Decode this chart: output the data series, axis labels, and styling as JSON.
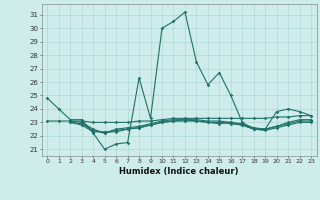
{
  "xlabel": "Humidex (Indice chaleur)",
  "bg_color": "#ceecea",
  "grid_color": "#aed8d4",
  "line_color": "#1e7068",
  "xlim": [
    -0.5,
    23.5
  ],
  "ylim": [
    20.5,
    31.8
  ],
  "yticks": [
    21,
    22,
    23,
    24,
    25,
    26,
    27,
    28,
    29,
    30,
    31
  ],
  "xticks": [
    0,
    1,
    2,
    3,
    4,
    5,
    6,
    7,
    8,
    9,
    10,
    11,
    12,
    13,
    14,
    15,
    16,
    17,
    18,
    19,
    20,
    21,
    22,
    23
  ],
  "line1_x": [
    0,
    1,
    2,
    3,
    4,
    5,
    6,
    7,
    8,
    9,
    10,
    11,
    12,
    13,
    14,
    15,
    16,
    17,
    18,
    19,
    20,
    21,
    22,
    23
  ],
  "line1_y": [
    24.8,
    24.0,
    23.2,
    23.2,
    22.2,
    21.0,
    21.4,
    21.5,
    26.3,
    23.3,
    30.0,
    30.5,
    31.2,
    27.5,
    25.8,
    26.7,
    25.0,
    23.0,
    22.5,
    22.5,
    23.8,
    24.0,
    23.8,
    23.5
  ],
  "line2_x": [
    0,
    1,
    2,
    3,
    4,
    5,
    6,
    7,
    8,
    9,
    10,
    11,
    12,
    13,
    14,
    15,
    16,
    17,
    18,
    19,
    20,
    21,
    22,
    23
  ],
  "line2_y": [
    23.1,
    23.1,
    23.1,
    23.1,
    23.0,
    23.0,
    23.0,
    23.0,
    23.1,
    23.1,
    23.2,
    23.3,
    23.3,
    23.3,
    23.3,
    23.3,
    23.3,
    23.3,
    23.3,
    23.3,
    23.4,
    23.4,
    23.5,
    23.5
  ],
  "line3_x": [
    2,
    3,
    4,
    5,
    6,
    7,
    8,
    9,
    10,
    11,
    12,
    13,
    14,
    15,
    16,
    17,
    18,
    19,
    20,
    21,
    22,
    23
  ],
  "line3_y": [
    23.0,
    22.8,
    22.3,
    22.3,
    22.3,
    22.5,
    22.6,
    22.8,
    23.0,
    23.1,
    23.2,
    23.1,
    23.0,
    22.9,
    23.0,
    22.8,
    22.5,
    22.5,
    22.7,
    23.0,
    23.2,
    23.2
  ],
  "line4_x": [
    2,
    3,
    4,
    5,
    6,
    7,
    8,
    9,
    10,
    11,
    12,
    13,
    14,
    15,
    16,
    17,
    18,
    19,
    20,
    21,
    22,
    23
  ],
  "line4_y": [
    23.1,
    23.0,
    22.5,
    22.2,
    22.5,
    22.6,
    22.7,
    22.9,
    23.1,
    23.2,
    23.2,
    23.2,
    23.1,
    23.1,
    23.0,
    22.9,
    22.6,
    22.5,
    22.7,
    22.9,
    23.1,
    23.1
  ],
  "line5_x": [
    2,
    3,
    4,
    5,
    6,
    7,
    8,
    9,
    10,
    11,
    12,
    13,
    14,
    15,
    16,
    17,
    18,
    19,
    20,
    21,
    22,
    23
  ],
  "line5_y": [
    23.0,
    22.9,
    22.4,
    22.2,
    22.4,
    22.5,
    22.6,
    22.8,
    23.0,
    23.1,
    23.1,
    23.1,
    23.0,
    23.0,
    22.9,
    22.8,
    22.5,
    22.4,
    22.6,
    22.8,
    23.0,
    23.0
  ]
}
